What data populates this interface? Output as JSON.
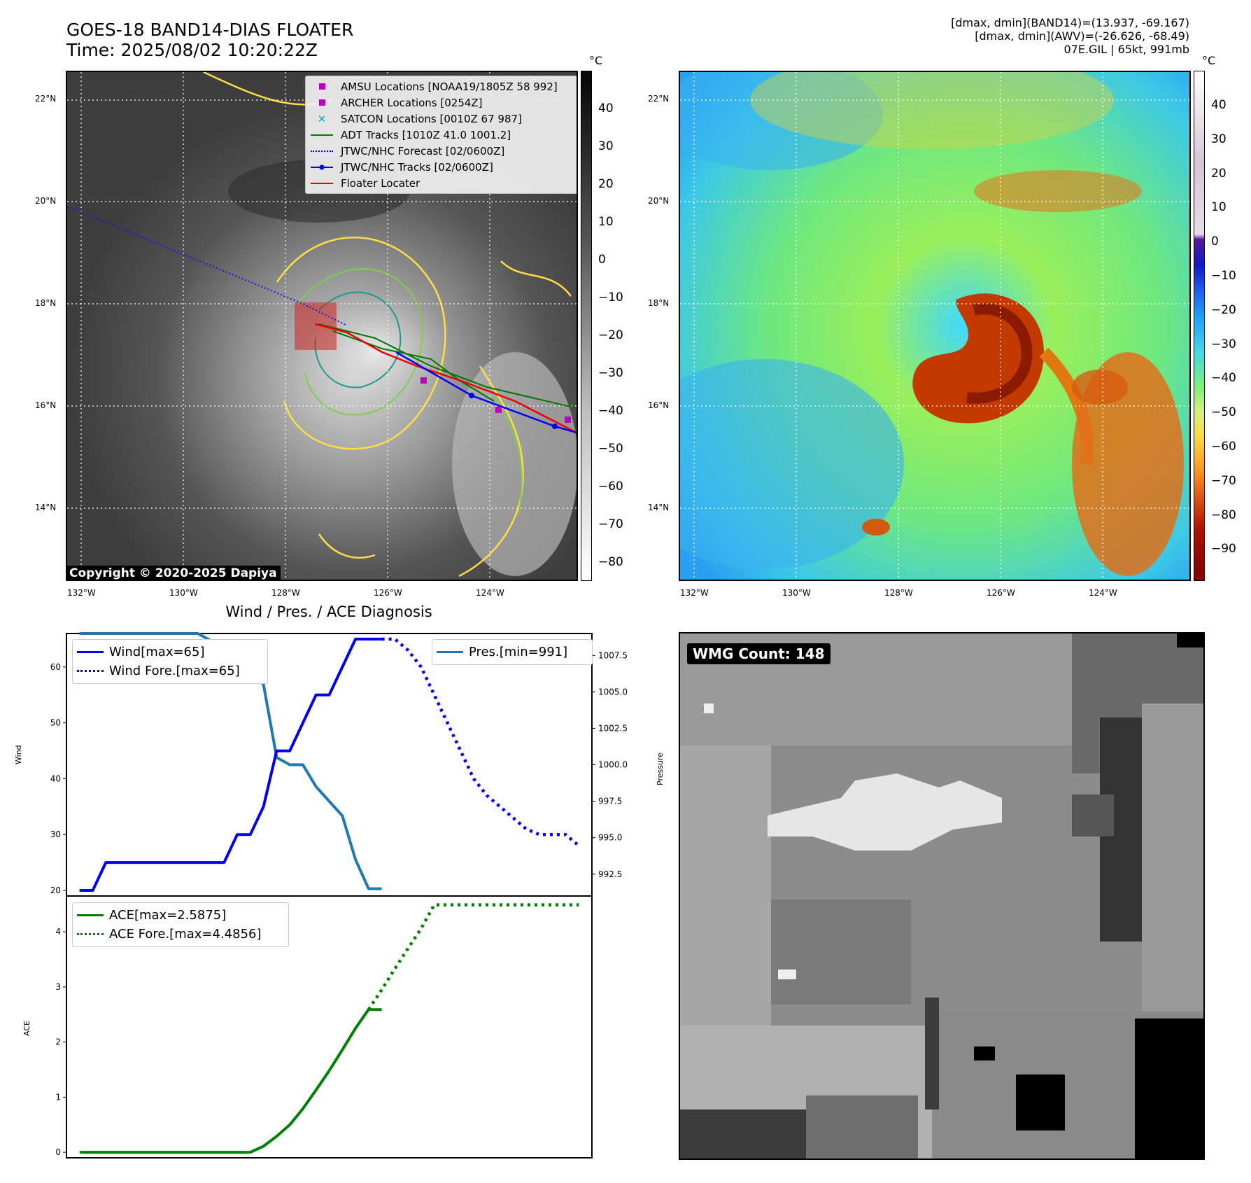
{
  "header": {
    "title_line1": "GOES-18 BAND14-DIAS FLOATER",
    "title_line2": "Time: 2025/08/02 10:20:22Z",
    "info_line1": "[dmax, dmin](BAND14)=(13.937, -69.167)",
    "info_line2": "[dmax, dmin](AWV)=(-26.626, -68.49)",
    "info_line3": "07E.GIL | 65kt, 991mb"
  },
  "map_left": {
    "lat_labels": [
      "22°N",
      "20°N",
      "18°N",
      "16°N",
      "14°N"
    ],
    "lon_labels": [
      "132°W",
      "130°W",
      "128°W",
      "126°W",
      "124°W"
    ],
    "legend": [
      {
        "label": "AMSU Locations [NOAA19/1805Z 58 992]",
        "color": "#c000c0",
        "symbol": "square"
      },
      {
        "label": "ARCHER Locations [0254Z]",
        "color": "#c000c0",
        "symbol": "square"
      },
      {
        "label": "SATCON Locations [0010Z 67 987]",
        "color": "#00b0b0",
        "symbol": "x"
      },
      {
        "label": "ADT Tracks [1010Z 41.0 1001.2]",
        "color": "#007700",
        "symbol": "line"
      },
      {
        "label": "JTWC/NHC Forecast [02/0600Z]",
        "color": "#0000ee",
        "symbol": "dotted"
      },
      {
        "label": "JTWC/NHC Tracks [02/0600Z]",
        "color": "#0000ee",
        "symbol": "line-dot"
      },
      {
        "label": "Floater Locater",
        "color": "#ee0000",
        "symbol": "line"
      }
    ],
    "copyright": "Copyright © 2020-2025 Dapiya",
    "colorbar_unit": "°C",
    "colorbar_labels": [
      "40",
      "30",
      "20",
      "10",
      "0",
      "−10",
      "−20",
      "−30",
      "−40",
      "−50",
      "−60",
      "−70",
      "−80"
    ]
  },
  "map_right": {
    "lat_labels": [
      "22°N",
      "20°N",
      "18°N",
      "16°N",
      "14°N"
    ],
    "lon_labels": [
      "132°W",
      "130°W",
      "128°W",
      "126°W",
      "124°W"
    ],
    "colorbar_unit": "°C",
    "colorbar_labels": [
      "40",
      "30",
      "20",
      "10",
      "0",
      "−10",
      "−20",
      "−30",
      "−40",
      "−50",
      "−60",
      "−70",
      "−80",
      "−90"
    ]
  },
  "chart_data": [
    {
      "type": "line",
      "title": "Wind / Pres. / ACE Diagnosis",
      "ylabel": "Wind",
      "ylabel_right": "Pressure",
      "ylim": [
        19,
        66
      ],
      "ylim_right": [
        991,
        1009
      ],
      "yticks": [
        "20",
        "30",
        "40",
        "50",
        "60"
      ],
      "yticks_right": [
        "992.5",
        "995.0",
        "997.5",
        "1000.0",
        "1002.5",
        "1005.0",
        "1007.5"
      ],
      "series": [
        {
          "name": "Wind[max=65]",
          "axis": "left",
          "style": "solid",
          "color": "#0000ee",
          "x": [
            0,
            1,
            2,
            3,
            4,
            5,
            6,
            7,
            8,
            9,
            10,
            11,
            12,
            13,
            14,
            15,
            16,
            17,
            18,
            19,
            20,
            21,
            22,
            23
          ],
          "values": [
            20,
            20,
            25,
            25,
            25,
            25,
            25,
            25,
            25,
            25,
            25,
            25,
            30,
            30,
            35,
            45,
            45,
            50,
            55,
            55,
            60,
            65,
            65,
            65
          ]
        },
        {
          "name": "Wind Fore.[max=65]",
          "axis": "left",
          "style": "dotted",
          "color": "#0000ee",
          "x": [
            23,
            24,
            25,
            26,
            27,
            28,
            29,
            30,
            31,
            32,
            33,
            34,
            35,
            36,
            37,
            38
          ],
          "values": [
            65,
            65,
            63,
            60,
            55,
            50,
            45,
            40,
            37,
            35,
            33,
            31,
            30,
            30,
            30,
            28
          ]
        },
        {
          "name": "Pres.[min=991]",
          "axis": "right",
          "style": "solid",
          "color": "#1f77b4",
          "x": [
            0,
            1,
            2,
            3,
            4,
            5,
            6,
            7,
            8,
            9,
            10,
            11,
            12,
            13,
            14,
            15,
            16,
            17,
            18,
            19,
            20,
            21,
            22,
            23
          ],
          "values": [
            1009,
            1009,
            1009,
            1009,
            1009,
            1009,
            1009,
            1009,
            1009,
            1009,
            1008.5,
            1008.5,
            1008.5,
            1006.5,
            1005.5,
            1000.5,
            1000,
            1000,
            998.5,
            997.5,
            996.5,
            993.5,
            991.5,
            991.5
          ]
        }
      ]
    },
    {
      "type": "line",
      "ylabel": "ACE",
      "ylim": [
        -0.1,
        4.65
      ],
      "yticks": [
        "0",
        "1",
        "2",
        "3",
        "4"
      ],
      "series": [
        {
          "name": "ACE[max=2.5875]",
          "style": "solid",
          "color": "#008000",
          "x": [
            0,
            2,
            4,
            6,
            8,
            10,
            12,
            13,
            14,
            15,
            16,
            17,
            18,
            19,
            20,
            21,
            22,
            23
          ],
          "values": [
            0,
            0,
            0,
            0,
            0,
            0,
            0,
            0,
            0.11,
            0.29,
            0.5,
            0.79,
            1.13,
            1.48,
            1.86,
            2.25,
            2.59,
            2.59
          ]
        },
        {
          "name": "ACE Fore.[max=4.4856]",
          "style": "dotted",
          "color": "#008000",
          "x": [
            22,
            23,
            24,
            25,
            26,
            27,
            28,
            29,
            30,
            31,
            32,
            33,
            34,
            35,
            36,
            37,
            38
          ],
          "values": [
            2.59,
            2.95,
            3.33,
            3.7,
            4.06,
            4.49,
            4.49,
            4.49,
            4.49,
            4.49,
            4.49,
            4.49,
            4.49,
            4.49,
            4.49,
            4.49,
            4.49
          ]
        }
      ]
    }
  ],
  "wmg": {
    "label": "WMG Count: 148"
  }
}
